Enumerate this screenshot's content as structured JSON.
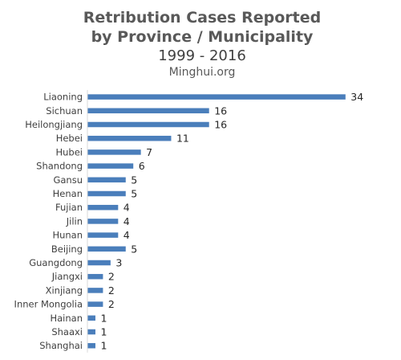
{
  "chart_data": {
    "type": "bar",
    "orientation": "horizontal",
    "title": "Retribution Cases Reported by Province / Municipality",
    "title_lines": [
      "Retribution Cases Reported",
      "by Province / Municipality"
    ],
    "subtitle": "1999 - 2016",
    "source": "Minghui.org",
    "categories": [
      "Liaoning",
      "Sichuan",
      "Heilongjiang",
      "Hebei",
      "Hubei",
      "Shandong",
      "Gansu",
      "Henan",
      "Fujian",
      "Jilin",
      "Hunan",
      "Beijing",
      "Guangdong",
      "Jiangxi",
      "Xinjiang",
      "Inner Mongolia",
      "Hainan",
      "Shaaxi",
      "Shanghai"
    ],
    "values": [
      34,
      16,
      16,
      11,
      7,
      6,
      5,
      5,
      4,
      4,
      4,
      5,
      3,
      2,
      2,
      2,
      1,
      1,
      1
    ],
    "data_labels": true,
    "bar_color": "#4a7ebb",
    "grid": false,
    "legend": "none"
  }
}
